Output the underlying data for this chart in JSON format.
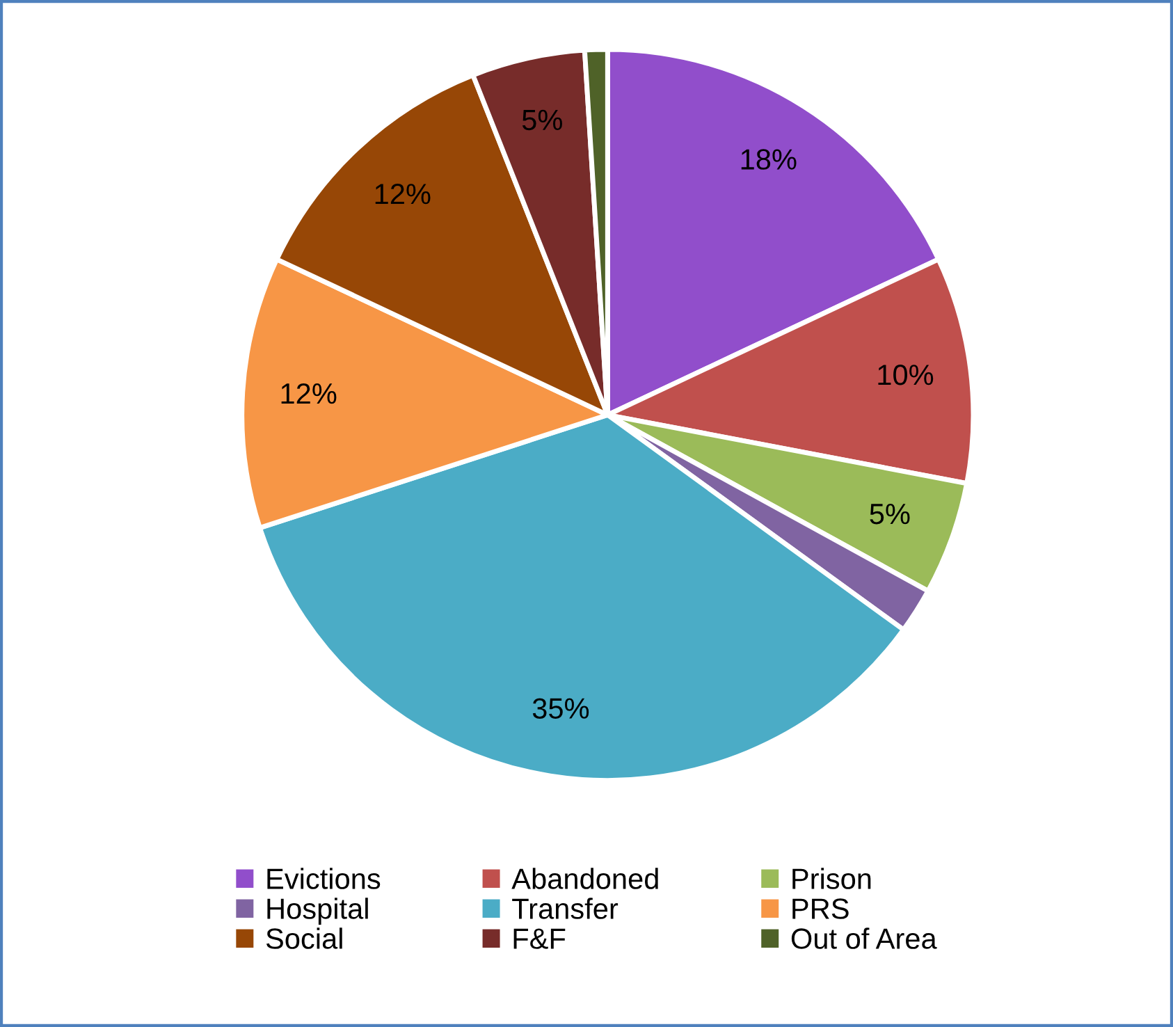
{
  "chart_data": {
    "type": "pie",
    "categories": [
      "Evictions",
      "Abandoned",
      "Prison",
      "Hospital",
      "Transfer",
      "PRS",
      "Social",
      "F&F",
      "Out of Area"
    ],
    "values": [
      18,
      10,
      5,
      2,
      35,
      12,
      12,
      5,
      1
    ],
    "value_labels": [
      "18%",
      "10%",
      "5%",
      null,
      "35%",
      "12%",
      "12%",
      "5%",
      null
    ],
    "colors": [
      "#914ecb",
      "#c0504d",
      "#9bbb59",
      "#8064a2",
      "#4bacc6",
      "#f79646",
      "#974706",
      "#772c2a",
      "#4f6228"
    ],
    "legend": "bottom"
  }
}
